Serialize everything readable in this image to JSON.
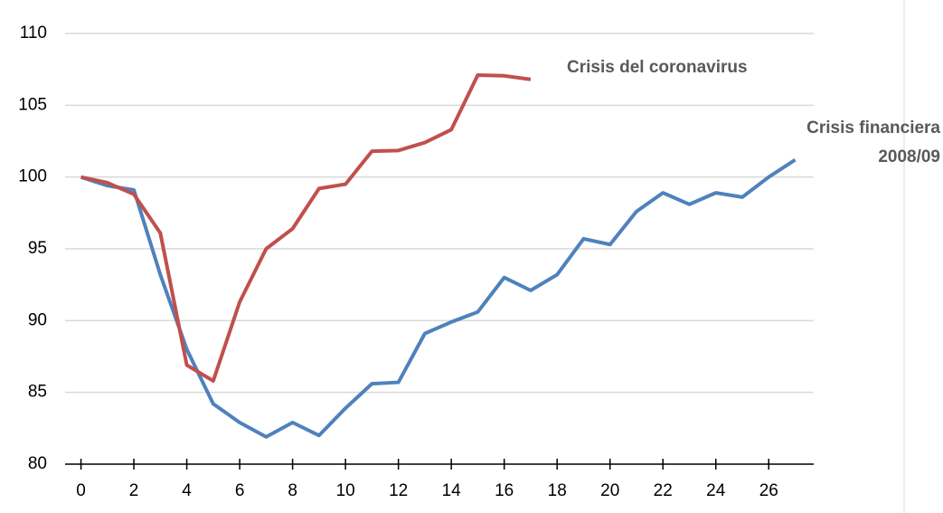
{
  "chart_data": {
    "type": "line",
    "x": [
      0,
      1,
      2,
      3,
      4,
      5,
      6,
      7,
      8,
      9,
      10,
      11,
      12,
      13,
      14,
      15,
      16,
      17,
      18,
      19,
      20,
      21,
      22,
      23,
      24,
      25,
      26,
      27
    ],
    "series": [
      {
        "name": "Crisis del coronavirus",
        "color": "#c0504d",
        "values": [
          100,
          99.6,
          98.8,
          96.1,
          86.9,
          85.8,
          91.3,
          95,
          96.4,
          99.2,
          99.5,
          101.8,
          101.85,
          102.4,
          103.3,
          107.1,
          107.05,
          106.8,
          null,
          null,
          null,
          null,
          null,
          null,
          null,
          null,
          null,
          null
        ]
      },
      {
        "name": "Crisis financiera 2008/09",
        "color": "#4f81bd",
        "values": [
          100,
          99.4,
          99.1,
          93.2,
          88,
          84.2,
          82.9,
          81.9,
          82.9,
          82,
          83.9,
          85.6,
          85.7,
          89.1,
          89.9,
          90.6,
          93,
          92.1,
          93.2,
          95.7,
          95.3,
          97.6,
          98.9,
          98.1,
          98.9,
          98.6,
          100,
          101.2
        ]
      }
    ],
    "xlim": [
      -0.6,
      27.7
    ],
    "xticks": [
      0,
      2,
      4,
      6,
      8,
      10,
      12,
      14,
      16,
      18,
      20,
      22,
      24,
      26
    ],
    "ylim": [
      80,
      110
    ],
    "yticks": [
      80,
      85,
      90,
      95,
      100,
      105,
      110
    ],
    "grid": true
  }
}
